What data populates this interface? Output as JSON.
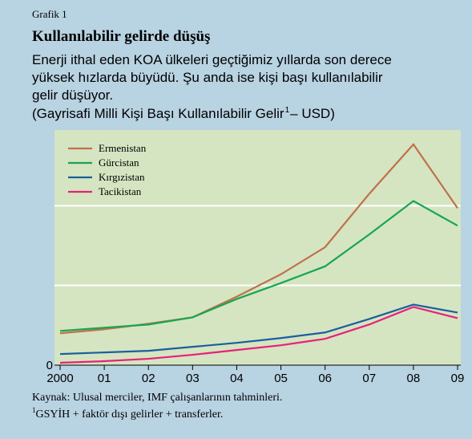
{
  "chart_data": {
    "type": "line",
    "kicker": "Grafik 1",
    "title": "Kullanılabilir gelirde düşüş",
    "subtitle_lines": [
      "Enerji ithal eden KOA ülkeleri geçtiğimiz yıllarda son derece",
      "yüksek hızlarda büyüdü. Şu anda ise kişi başı kullanılabilir",
      "gelir düşüyor."
    ],
    "unit_label": "(Gayrisafi Milli Kişi Başı Kullanılabilir Gelir",
    "unit_footnote_mark": "1",
    "unit_label_end": " – USD)",
    "source": "Kaynak: Ulusal merciler, IMF çalışanlarının tahminleri.",
    "footnote_mark": "1",
    "footnote": " GSYİH + faktör dışı gelirler + transferler.",
    "categories": [
      "2000",
      "01",
      "02",
      "03",
      "04",
      "05",
      "06",
      "07",
      "08",
      "09"
    ],
    "series": [
      {
        "name": "Ermenistan",
        "color": "#c0714b",
        "values": [
          0.4,
          0.45,
          0.52,
          0.6,
          0.86,
          1.14,
          1.48,
          2.15,
          2.77,
          1.97
        ]
      },
      {
        "name": "Gürcistan",
        "color": "#17a651",
        "values": [
          0.43,
          0.47,
          0.51,
          0.6,
          0.83,
          1.03,
          1.24,
          1.64,
          2.06,
          1.75
        ]
      },
      {
        "name": "Kırgızistan",
        "color": "#1b5e9f",
        "values": [
          0.14,
          0.16,
          0.18,
          0.23,
          0.28,
          0.34,
          0.41,
          0.58,
          0.76,
          0.66
        ]
      },
      {
        "name": "Tacikistan",
        "color": "#e8207a",
        "values": [
          0.03,
          0.05,
          0.08,
          0.13,
          0.19,
          0.25,
          0.33,
          0.51,
          0.73,
          0.59
        ]
      }
    ],
    "ylim": [
      0,
      2.95
    ],
    "yticks": [
      0,
      {
        "value": 1,
        "label": null
      },
      {
        "value": 2,
        "label": null
      }
    ],
    "grid": true,
    "legend": "top-left"
  }
}
